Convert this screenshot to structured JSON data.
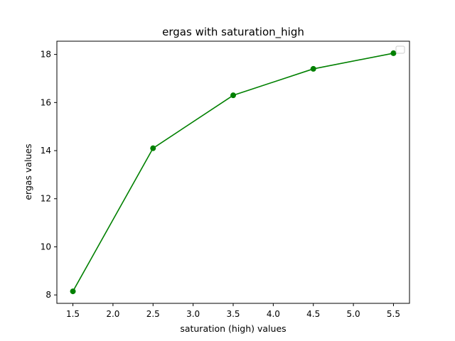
{
  "chart_data": {
    "type": "line",
    "title": "ergas with saturation_high",
    "xlabel": "saturation (high) values",
    "ylabel": "ergas values",
    "x": [
      1.5,
      2.5,
      3.5,
      4.5,
      5.5
    ],
    "series": [
      {
        "values": [
          8.15,
          14.1,
          16.3,
          17.4,
          18.05
        ],
        "color": "#008000",
        "marker": "circle"
      }
    ],
    "xlim": [
      1.3,
      5.7
    ],
    "ylim": [
      7.65,
      18.55
    ],
    "xticks": [
      "1.5",
      "2.0",
      "2.5",
      "3.0",
      "3.5",
      "4.0",
      "4.5",
      "5.0",
      "5.5"
    ],
    "yticks": [
      "8",
      "10",
      "12",
      "14",
      "16",
      "18"
    ],
    "legend": "top-right (empty)",
    "grid": false
  }
}
